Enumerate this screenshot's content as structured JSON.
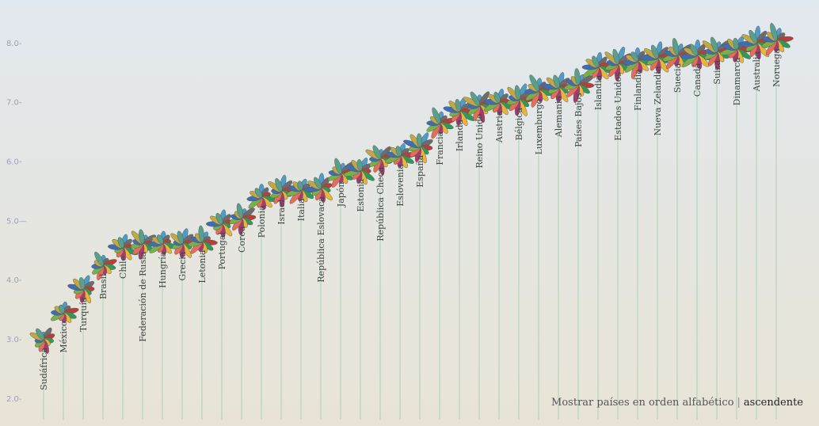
{
  "colors": {
    "petals": [
      "#4f9ccb",
      "#6c6c6c",
      "#b5403a",
      "#2f9a57",
      "#e8b43a",
      "#a63b6e",
      "#e46e5a",
      "#79b04a",
      "#3f6db0",
      "#c0a845",
      "#5a9e8c"
    ],
    "stem": "#a9d3b4",
    "axis_text": "#9aa3b5"
  },
  "controls": {
    "prefix": "Mostrar países en orden",
    "alphabetical": "alfabético",
    "separator": "|",
    "ascending": "ascendente"
  },
  "chart_data": {
    "type": "scatter",
    "ylim": [
      1.65,
      8.6
    ],
    "y_ticks": [
      "2.0-",
      "3.0-",
      "4.0-",
      "5.0—",
      "6.0-",
      "7.0-",
      "8.0-"
    ],
    "y_tick_values": [
      2,
      3,
      4,
      5,
      6,
      7,
      8
    ],
    "categories": [
      "Sudáfrica",
      "México",
      "Turquía",
      "Brasil",
      "Chile",
      "Federación de Rusia",
      "Hungría",
      "Grecia",
      "Letonia",
      "Portugal",
      "Corea",
      "Polonia",
      "Israel",
      "Italia",
      "República Eslovaca",
      "Japón",
      "Estonia",
      "República Checa",
      "Eslovenia",
      "España",
      "Francia",
      "Irlanda",
      "Reino Unido",
      "Austria",
      "Bélgica",
      "Luxemburgo",
      "Alemania",
      "Países Bajos",
      "Islandia",
      "Estados Unidos",
      "Finlandia",
      "Nueva Zelandia",
      "Suecia",
      "Canadá",
      "Suiza",
      "Dinamarca",
      "Australia",
      "Noruega"
    ],
    "values": [
      3.0,
      3.45,
      3.85,
      4.25,
      4.55,
      4.62,
      4.62,
      4.62,
      4.65,
      4.95,
      5.05,
      5.4,
      5.5,
      5.52,
      5.55,
      5.8,
      5.85,
      6.05,
      6.1,
      6.25,
      6.65,
      6.85,
      6.95,
      7.0,
      7.05,
      7.2,
      7.25,
      7.3,
      7.6,
      7.65,
      7.7,
      7.75,
      7.8,
      7.8,
      7.85,
      7.9,
      8.0,
      8.05
    ]
  }
}
